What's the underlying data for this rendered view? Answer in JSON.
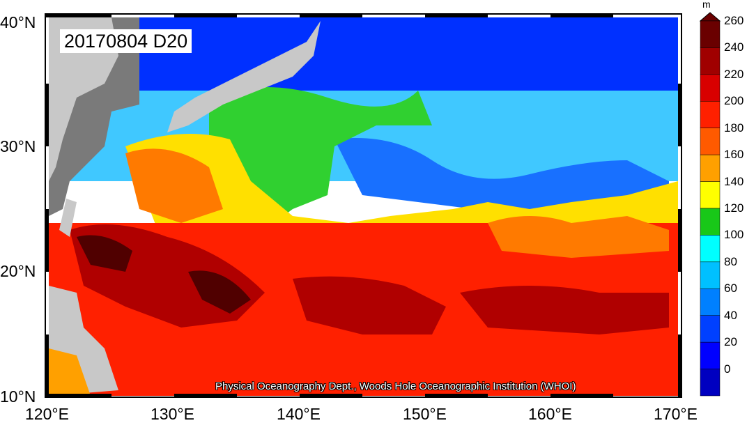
{
  "stamp": "20170804 D20",
  "credit": "Physical Oceanography Dept., Woods Hole Oceanographic Institution (WHOI)",
  "x_ticks": [
    "120°E",
    "130°E",
    "140°E",
    "150°E",
    "160°E",
    "170°E"
  ],
  "y_ticks": [
    "40°N",
    "30°N",
    "20°N",
    "10°N"
  ],
  "colorbar": {
    "unit": "m",
    "labels": [
      "260",
      "240",
      "220",
      "200",
      "180",
      "160",
      "140",
      "120",
      "100",
      "80",
      "60",
      "40",
      "20",
      "0"
    ],
    "colors": [
      "#6a0000",
      "#a00000",
      "#d80000",
      "#ff2000",
      "#ff5a00",
      "#ffa000",
      "#ffff00",
      "#18c818",
      "#00ffff",
      "#00c0ff",
      "#0080ff",
      "#0040ff",
      "#0000ff",
      "#0000c0"
    ]
  },
  "land_colors": {
    "land": "#c8c8c8",
    "dark_land": "#7a7a7a"
  }
}
